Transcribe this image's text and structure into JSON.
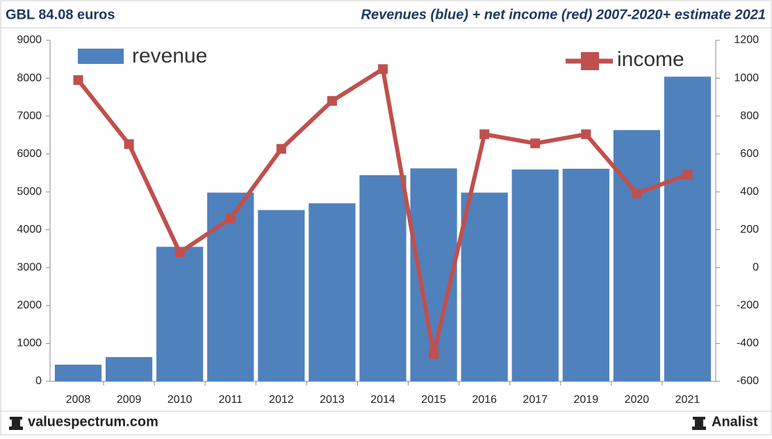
{
  "chart_data": {
    "type": "bar",
    "title": "GBL 84.08 euros",
    "subtitle": "Revenues (blue) + net income (red) 2007-2020+ estimate 2021",
    "source": "valuespectrum.com",
    "credit": "Analist",
    "categories": [
      "2008",
      "2009",
      "2010",
      "2011",
      "2012",
      "2013",
      "2014",
      "2015",
      "2016",
      "2017",
      "2019",
      "2020",
      "2021"
    ],
    "series": [
      {
        "name": "revenue",
        "type": "bar",
        "color": "#4f81bd",
        "values": [
          440,
          640,
          3550,
          4980,
          4520,
          4700,
          5440,
          5620,
          4980,
          5590,
          5610,
          6630,
          8040
        ]
      },
      {
        "name": "income",
        "type": "line",
        "axis": "y2",
        "color": "#c0504d",
        "values": [
          990,
          652,
          80,
          260,
          627,
          880,
          1048,
          -455,
          704,
          656,
          704,
          392,
          491
        ]
      }
    ],
    "ylim": [
      0,
      9000
    ],
    "yticks": [
      0,
      1000,
      2000,
      3000,
      4000,
      5000,
      6000,
      7000,
      8000,
      9000
    ],
    "y2lim": [
      -600,
      1200
    ],
    "y2ticks": [
      -600,
      -400,
      -200,
      0,
      200,
      400,
      600,
      800,
      1000,
      1200
    ],
    "grid": false
  }
}
